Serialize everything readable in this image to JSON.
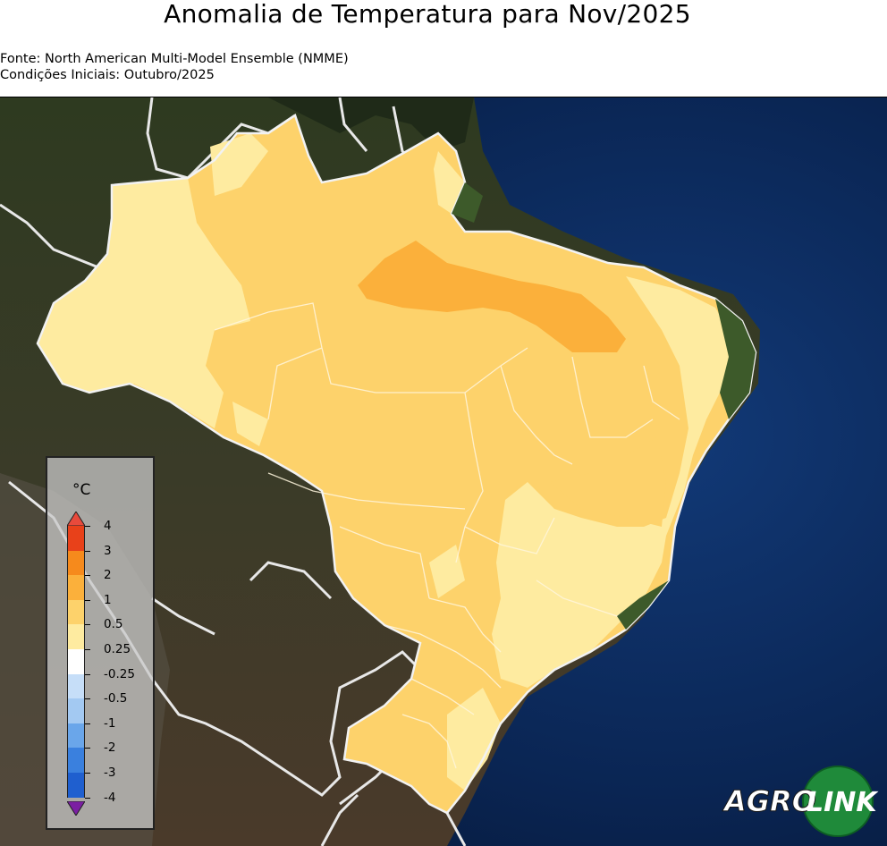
{
  "title": "Anomalia de Temperatura para Nov/2025",
  "source_line": "Fonte: North American Multi-Model Ensemble (NMME)",
  "initial_conditions_line": "Condições Iniciais: Outubro/2025",
  "legend": {
    "unit": "°C",
    "ticks": [
      "4",
      "3",
      "2",
      "1",
      "0.5",
      "0.25",
      "-0.25",
      "-0.5",
      "-1",
      "-2",
      "-3",
      "-4"
    ],
    "colors": [
      "#e8411a",
      "#f68a1c",
      "#fbb03b",
      "#fdd26b",
      "#feeba0",
      "#ffffff",
      "#c6def8",
      "#a3c9f2",
      "#6aa6ea",
      "#3a80de",
      "#1f5fcf"
    ],
    "over_color": "#e84a3c",
    "under_color": "#7b1fa2"
  },
  "logo": {
    "text_left": "AGRO",
    "text_right": "LINK"
  },
  "colors": {
    "ocean": "#0b2450",
    "land": "#2f3a24",
    "anom_050_100": "#fdd26b",
    "anom_025_050": "#feeba0",
    "anom_100_200": "#fbb03b",
    "borders": "#e8e8e8"
  }
}
